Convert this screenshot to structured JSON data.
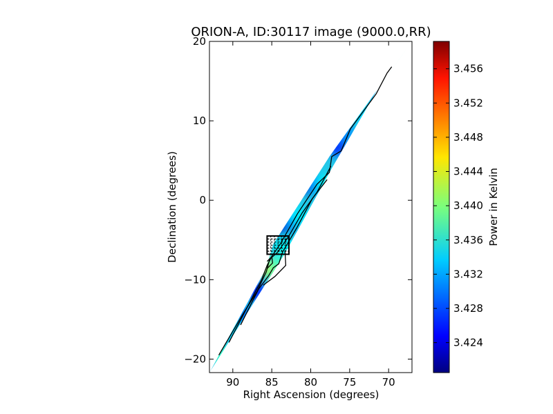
{
  "chart_data": {
    "type": "heatmap",
    "title": "ORION-A, ID:30117 image (9000.0,RR)",
    "xlabel": "Right Ascension (degrees)",
    "ylabel": "Declination (degrees)",
    "xlim": [
      93,
      67
    ],
    "ylim": [
      -21.7,
      20
    ],
    "x_ticks": [
      {
        "value": 90,
        "label": "90"
      },
      {
        "value": 85,
        "label": "85"
      },
      {
        "value": 80,
        "label": "80"
      },
      {
        "value": 75,
        "label": "75"
      },
      {
        "value": 70,
        "label": "70"
      }
    ],
    "y_ticks": [
      {
        "value": 20,
        "label": "20"
      },
      {
        "value": 10,
        "label": "10"
      },
      {
        "value": 0,
        "label": "0"
      },
      {
        "value": -10,
        "label": "−10"
      },
      {
        "value": -20,
        "label": "−20"
      }
    ],
    "colorbar": {
      "label": "Power in Kelvin",
      "range": [
        3.4205,
        3.4592
      ],
      "colormap": "jet",
      "ticks": [
        {
          "value": 3.424,
          "label": "3.424"
        },
        {
          "value": 3.428,
          "label": "3.428"
        },
        {
          "value": 3.432,
          "label": "3.432"
        },
        {
          "value": 3.436,
          "label": "3.436"
        },
        {
          "value": 3.44,
          "label": "3.440"
        },
        {
          "value": 3.444,
          "label": "3.444"
        },
        {
          "value": 3.448,
          "label": "3.448"
        },
        {
          "value": 3.452,
          "label": "3.452"
        },
        {
          "value": 3.456,
          "label": "3.456"
        }
      ]
    },
    "grid": false,
    "observed_region": {
      "edge_a": [
        [
          93.0,
          -21.7
        ],
        [
          85.8,
          -8.7
        ],
        [
          84.8,
          -5.5
        ],
        [
          77.6,
          5.5
        ],
        [
          67.0,
          20.0
        ]
      ],
      "edge_b": [
        [
          67.0,
          20.0
        ],
        [
          71.4,
          14.0
        ],
        [
          77.3,
          4.0
        ],
        [
          83.3,
          -6.7
        ],
        [
          93.0,
          -21.7
        ]
      ]
    },
    "color_samples": [
      {
        "ra": 91.4,
        "dec": -19.5,
        "value": 3.4372
      },
      {
        "ra": 90.0,
        "dec": -16.2,
        "value": 3.4335
      },
      {
        "ra": 88.4,
        "dec": -14.5,
        "value": 3.4295
      },
      {
        "ra": 86.9,
        "dec": -11.5,
        "value": 3.4262
      },
      {
        "ra": 86.4,
        "dec": -8.5,
        "value": 3.4236
      },
      {
        "ra": 85.6,
        "dec": -8.5,
        "value": 3.4425
      },
      {
        "ra": 84.7,
        "dec": -8.5,
        "value": 3.4405
      },
      {
        "ra": 83.9,
        "dec": -8.2,
        "value": 3.4375
      },
      {
        "ra": 83.6,
        "dec": -6.0,
        "value": 3.4352
      },
      {
        "ra": 85.2,
        "dec": -3.5,
        "value": 3.4215
      },
      {
        "ra": 83.8,
        "dec": -3.0,
        "value": 3.4235
      },
      {
        "ra": 82.3,
        "dec": -2.5,
        "value": 3.4305
      },
      {
        "ra": 81.5,
        "dec": -2.0,
        "value": 3.4345
      },
      {
        "ra": 81.0,
        "dec": 2.0,
        "value": 3.4225
      },
      {
        "ra": 79.5,
        "dec": 2.0,
        "value": 3.4295
      },
      {
        "ra": 78.2,
        "dec": 2.0,
        "value": 3.4352
      },
      {
        "ra": 76.6,
        "dec": 6.8,
        "value": 3.4265
      },
      {
        "ra": 75.6,
        "dec": 8.5,
        "value": 3.4305
      },
      {
        "ra": 73.3,
        "dec": 11.0,
        "value": 3.4335
      },
      {
        "ra": 72.5,
        "dec": 14.0,
        "value": 3.4315
      },
      {
        "ra": 70.8,
        "dec": 16.5,
        "value": 3.4345
      },
      {
        "ra": 68.3,
        "dec": 18.8,
        "value": 3.4372
      }
    ],
    "contours": [
      [
        [
          91.8,
          -19.5
        ],
        [
          88.8,
          -14.5
        ],
        [
          86.9,
          -11.5
        ],
        [
          85.7,
          -9.0
        ],
        [
          85.3,
          -7.5
        ],
        [
          83.9,
          -5.5
        ],
        [
          81.7,
          -1.7
        ],
        [
          79.2,
          2.0
        ],
        [
          77.6,
          3.5
        ],
        [
          77.3,
          5.5
        ],
        [
          76.1,
          6.2
        ],
        [
          74.9,
          9.0
        ],
        [
          71.6,
          13.4
        ],
        [
          70.2,
          16.0
        ],
        [
          69.6,
          16.8
        ]
      ],
      [
        [
          90.5,
          -17.9
        ],
        [
          87.8,
          -12.8
        ],
        [
          86.3,
          -10.0
        ],
        [
          85.6,
          -8.2
        ],
        [
          85.1,
          -7.3
        ],
        [
          84.2,
          -6.5
        ],
        [
          82.8,
          -4.5
        ],
        [
          81.1,
          -1.6
        ],
        [
          79.2,
          1.0
        ],
        [
          77.4,
          4.3
        ]
      ],
      [
        [
          89.0,
          -15.7
        ],
        [
          86.7,
          -11.2
        ],
        [
          85.4,
          -9.5
        ],
        [
          84.8,
          -8.5
        ],
        [
          84.1,
          -8.0
        ],
        [
          83.6,
          -6.5
        ],
        [
          81.8,
          -3.5
        ],
        [
          79.8,
          0.2
        ],
        [
          77.9,
          2.6
        ]
      ],
      [
        [
          85.6,
          -8.6
        ],
        [
          84.9,
          -7.9
        ],
        [
          85.0,
          -7.1
        ],
        [
          85.6,
          -7.7
        ]
      ],
      [
        [
          86.1,
          -10.7
        ],
        [
          84.6,
          -9.6
        ],
        [
          83.2,
          -8.2
        ],
        [
          83.3,
          -6.4
        ]
      ]
    ],
    "annotation_box": {
      "ra": [
        82.8,
        85.6
      ],
      "dec": [
        -6.8,
        -4.5
      ]
    }
  }
}
